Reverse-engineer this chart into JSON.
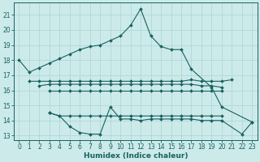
{
  "xlabel": "Humidex (Indice chaleur)",
  "ylabel": "",
  "xlim": [
    -0.5,
    23.5
  ],
  "ylim": [
    12.7,
    21.8
  ],
  "yticks": [
    13,
    14,
    15,
    16,
    17,
    18,
    19,
    20,
    21
  ],
  "xticks": [
    0,
    1,
    2,
    3,
    4,
    5,
    6,
    7,
    8,
    9,
    10,
    11,
    12,
    13,
    14,
    15,
    16,
    17,
    18,
    19,
    20,
    21,
    22,
    23
  ],
  "bg_color": "#cceaea",
  "grid_color": "#aad4d4",
  "line_color": "#1a6060",
  "series": [
    {
      "x": [
        0,
        1,
        2,
        3,
        4,
        5,
        6,
        7,
        8,
        9,
        10,
        11,
        12,
        13,
        14,
        15,
        16,
        17,
        19,
        20,
        23
      ],
      "y": [
        18.0,
        17.2,
        17.5,
        17.8,
        18.1,
        18.4,
        18.7,
        18.9,
        19.0,
        19.3,
        19.6,
        20.3,
        21.4,
        19.6,
        18.9,
        18.7,
        18.7,
        17.4,
        16.2,
        14.9,
        13.9
      ]
    },
    {
      "x": [
        1,
        2,
        3,
        4,
        5,
        6,
        7,
        8,
        9,
        10,
        11,
        12,
        13,
        14,
        15,
        16,
        17,
        18,
        19,
        20,
        21
      ],
      "y": [
        16.6,
        16.6,
        16.6,
        16.6,
        16.6,
        16.6,
        16.6,
        16.6,
        16.6,
        16.6,
        16.6,
        16.6,
        16.6,
        16.6,
        16.6,
        16.6,
        16.7,
        16.6,
        16.6,
        16.6,
        16.7
      ]
    },
    {
      "x": [
        2,
        3,
        4,
        5,
        6,
        7,
        8,
        9,
        10,
        11,
        12,
        13,
        14,
        15,
        16,
        17,
        18,
        19,
        20
      ],
      "y": [
        16.3,
        16.4,
        16.4,
        16.4,
        16.4,
        16.4,
        16.4,
        16.4,
        16.4,
        16.4,
        16.4,
        16.4,
        16.4,
        16.4,
        16.4,
        16.4,
        16.3,
        16.3,
        16.2
      ]
    },
    {
      "x": [
        3,
        4,
        5,
        6,
        7,
        8,
        9,
        10,
        11,
        12,
        13,
        14,
        15,
        16,
        17,
        18,
        19,
        20
      ],
      "y": [
        16.0,
        16.0,
        16.0,
        16.0,
        16.0,
        16.0,
        16.0,
        16.0,
        16.0,
        16.0,
        16.0,
        16.0,
        16.0,
        16.0,
        16.0,
        16.0,
        16.0,
        16.0
      ]
    },
    {
      "x": [
        3,
        4,
        5,
        6,
        7,
        8,
        9,
        10,
        11,
        12,
        13,
        14,
        15,
        16,
        17,
        18,
        19,
        20,
        22,
        23
      ],
      "y": [
        14.5,
        14.3,
        13.6,
        13.2,
        13.1,
        13.1,
        14.9,
        14.1,
        14.1,
        14.0,
        14.1,
        14.1,
        14.1,
        14.1,
        14.1,
        14.0,
        14.0,
        14.0,
        13.1,
        13.9
      ]
    },
    {
      "x": [
        3,
        4,
        5,
        6,
        7,
        8,
        9,
        10,
        11,
        12,
        13,
        14,
        15,
        16,
        17,
        18,
        19,
        20
      ],
      "y": [
        14.5,
        14.3,
        14.3,
        14.3,
        14.3,
        14.3,
        14.3,
        14.3,
        14.3,
        14.3,
        14.3,
        14.3,
        14.3,
        14.3,
        14.3,
        14.3,
        14.3,
        14.3
      ]
    }
  ]
}
